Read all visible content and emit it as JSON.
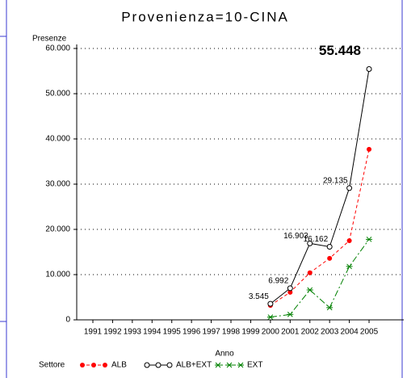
{
  "chart_data": {
    "type": "line",
    "title": "Provenienza=10-CINA",
    "y_label": "Presenze",
    "x_label": "Anno",
    "legend_title": "Settore",
    "categories": [
      "1991",
      "1992",
      "1993",
      "1994",
      "1995",
      "1996",
      "1997",
      "1998",
      "1999",
      "2000",
      "2001",
      "2002",
      "2003",
      "2004",
      "2005"
    ],
    "ylim": [
      0,
      60000
    ],
    "yticks": [
      0,
      {
        "value": 10000,
        "label": "10.000"
      },
      {
        "value": 20000,
        "label": "20.000"
      },
      {
        "value": 30000,
        "label": "30.000"
      },
      {
        "value": 40000,
        "label": "40.000"
      },
      {
        "value": 50000,
        "label": "50.000"
      },
      {
        "value": 60000,
        "label": "60.000"
      }
    ],
    "grid": true,
    "series": [
      {
        "name": "ALB",
        "color": "#ff0000",
        "dash": "4,3",
        "marker": "dot",
        "values": [
          null,
          null,
          null,
          null,
          null,
          null,
          null,
          null,
          null,
          3200,
          6100,
          10400,
          13600,
          17500,
          37700
        ]
      },
      {
        "name": "ALB+EXT",
        "color": "#000000",
        "dash": "none",
        "marker": "circle",
        "values": [
          null,
          null,
          null,
          null,
          null,
          null,
          null,
          null,
          null,
          3545,
          6992,
          16903,
          16162,
          29135,
          55448
        ],
        "value_labels": [
          null,
          null,
          null,
          null,
          null,
          null,
          null,
          null,
          null,
          "3.545",
          "6.992",
          "16.903",
          "16.162",
          "29.135",
          "55.448"
        ]
      },
      {
        "name": "EXT",
        "color": "#008000",
        "dash": "8,3,2,3",
        "marker": "star",
        "values": [
          null,
          null,
          null,
          null,
          null,
          null,
          null,
          null,
          null,
          600,
          1200,
          6600,
          2700,
          11800,
          17800
        ]
      }
    ]
  }
}
